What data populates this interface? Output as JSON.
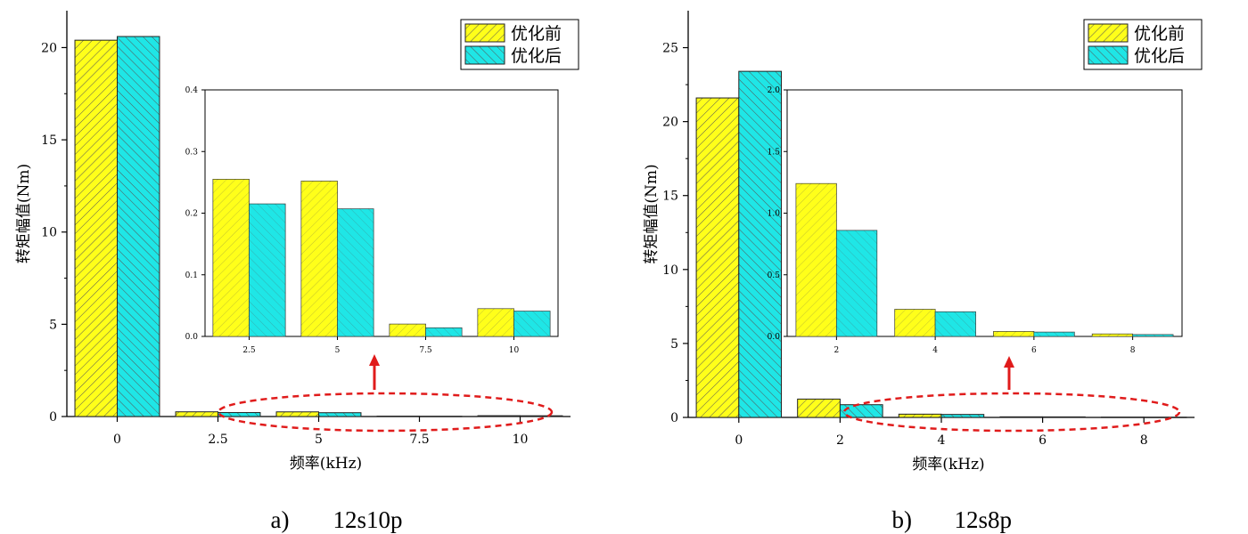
{
  "chart_data": [
    {
      "type": "bar",
      "caption": {
        "label": "a)",
        "text": "12s10p"
      },
      "ylabel": "转矩幅值(Nm)",
      "xlabel": "频率(kHz)",
      "categories": [
        "0",
        "2.5",
        "5",
        "7.5",
        "10"
      ],
      "xticks": [
        "0",
        "2.5",
        "5",
        "7.5",
        "10"
      ],
      "ylim": [
        0,
        22
      ],
      "yticks": [
        "0",
        "5",
        "10",
        "15",
        "20"
      ],
      "series": [
        {
          "name": "优化前",
          "values": [
            20.4,
            0.255,
            0.252,
            0.02,
            0.045
          ]
        },
        {
          "name": "优化后",
          "values": [
            20.6,
            0.215,
            0.207,
            0.014,
            0.041
          ]
        }
      ],
      "inset": {
        "categories": [
          "2.5",
          "5",
          "7.5",
          "10"
        ],
        "ylim": [
          0,
          0.4
        ],
        "yticks": [
          "0.0",
          "0.1",
          "0.2",
          "0.3",
          "0.4"
        ],
        "series": [
          {
            "name": "优化前",
            "values": [
              0.255,
              0.252,
              0.02,
              0.045
            ]
          },
          {
            "name": "优化后",
            "values": [
              0.215,
              0.207,
              0.014,
              0.041
            ]
          }
        ]
      },
      "legend": "top-right"
    },
    {
      "type": "bar",
      "caption": {
        "label": "b)",
        "text": "12s8p"
      },
      "ylabel": "转矩幅值(Nm)",
      "xlabel": "频率(kHz)",
      "categories": [
        "0",
        "2",
        "4",
        "6",
        "8"
      ],
      "xticks": [
        "0",
        "2",
        "4",
        "6",
        "8"
      ],
      "ylim": [
        0,
        27.5
      ],
      "yticks": [
        "0",
        "5",
        "10",
        "15",
        "20",
        "25"
      ],
      "series": [
        {
          "name": "优化前",
          "values": [
            21.6,
            1.24,
            0.22,
            0.04,
            0.02
          ]
        },
        {
          "name": "优化后",
          "values": [
            23.4,
            0.86,
            0.2,
            0.035,
            0.015
          ]
        }
      ],
      "inset": {
        "categories": [
          "2",
          "4",
          "6",
          "8"
        ],
        "ylim": [
          0,
          2.0
        ],
        "yticks": [
          "0.0",
          "0.5",
          "1.0",
          "1.5",
          "2.0"
        ],
        "series": [
          {
            "name": "优化前",
            "values": [
              1.24,
              0.22,
              0.04,
              0.02
            ]
          },
          {
            "name": "优化后",
            "values": [
              0.86,
              0.2,
              0.035,
              0.015
            ]
          }
        ]
      },
      "legend": "top-right"
    }
  ],
  "colors": {
    "before": "#ffff1a",
    "after": "#1fe6e6",
    "annotation": "#e01b1b"
  },
  "legend_labels": [
    "优化前",
    "优化后"
  ]
}
